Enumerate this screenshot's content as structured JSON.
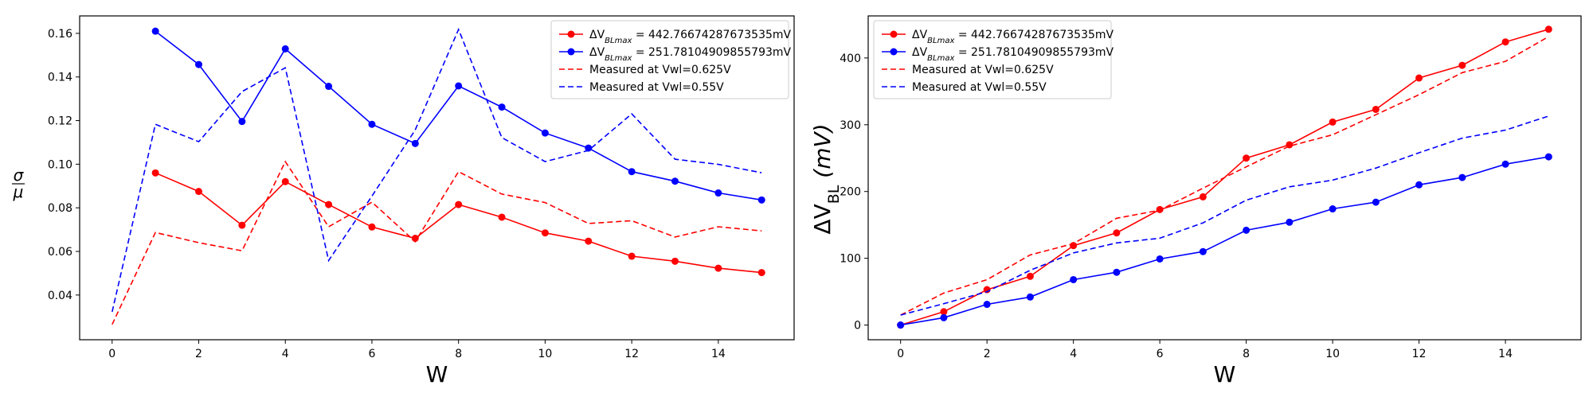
{
  "chart_data": [
    {
      "type": "line",
      "title": "",
      "xlabel": "W",
      "ylabel": "σ/μ",
      "ylabel_parts": {
        "numerator": "σ",
        "denominator": "μ"
      },
      "xlim": [
        -0.75,
        15.75
      ],
      "ylim": [
        0.0195,
        0.168
      ],
      "xticks": [
        0,
        2,
        4,
        6,
        8,
        10,
        12,
        14
      ],
      "xtick_labels": [
        "0",
        "2",
        "4",
        "6",
        "8",
        "10",
        "12",
        "14"
      ],
      "yticks": [
        0.04,
        0.06,
        0.08,
        0.1,
        0.12,
        0.14,
        0.16
      ],
      "ytick_labels": [
        "0.04",
        "0.06",
        "0.08",
        "0.10",
        "0.12",
        "0.14",
        "0.16"
      ],
      "grid": false,
      "legend_position": "top-right",
      "series": [
        {
          "name": "ΔV_BLmax = 442.76674287673535mV",
          "legend_prefix": "ΔV",
          "legend_sub": "BLmax",
          "legend_value": " = 442.76674287673535mV",
          "color": "#ff0000",
          "style": "solid",
          "marker": "circle",
          "x": [
            1,
            2,
            3,
            4,
            5,
            6,
            7,
            8,
            9,
            10,
            11,
            12,
            13,
            14,
            15
          ],
          "y": [
            0.096,
            0.0875,
            0.072,
            0.092,
            0.0815,
            0.0712,
            0.066,
            0.0815,
            0.0757,
            0.0685,
            0.0647,
            0.0578,
            0.0555,
            0.0523,
            0.0503
          ]
        },
        {
          "name": "ΔV_BLmax = 251.78104909855793mV",
          "legend_prefix": "ΔV",
          "legend_sub": "BLmax",
          "legend_value": " = 251.78104909855793mV",
          "color": "#0000ff",
          "style": "solid",
          "marker": "circle",
          "x": [
            1,
            2,
            3,
            4,
            5,
            6,
            7,
            8,
            9,
            10,
            11,
            12,
            13,
            14,
            15
          ],
          "y": [
            0.161,
            0.1457,
            0.1196,
            0.1529,
            0.1357,
            0.1183,
            0.1095,
            0.1359,
            0.1262,
            0.1143,
            0.1074,
            0.0966,
            0.0922,
            0.0868,
            0.0836
          ]
        },
        {
          "name": "Measured at Vwl=0.625V",
          "color": "#ff0000",
          "style": "dashed",
          "marker": "none",
          "x": [
            0,
            1,
            2,
            3,
            4,
            5,
            6,
            7,
            8,
            9,
            10,
            11,
            12,
            13,
            14,
            15
          ],
          "y": [
            0.0265,
            0.0687,
            0.064,
            0.0603,
            0.1012,
            0.0713,
            0.0826,
            0.0645,
            0.0966,
            0.0863,
            0.0824,
            0.0728,
            0.0741,
            0.0666,
            0.0713,
            0.0694
          ]
        },
        {
          "name": "Measured at Vwl=0.55V",
          "color": "#0000ff",
          "style": "dashed",
          "marker": "none",
          "x": [
            0,
            1,
            2,
            3,
            4,
            5,
            6,
            7,
            8,
            9,
            10,
            11,
            12,
            13,
            14,
            15
          ],
          "y": [
            0.0323,
            0.1183,
            0.1103,
            0.1333,
            0.1442,
            0.0558,
            0.0854,
            0.1157,
            0.1618,
            0.1122,
            0.1012,
            0.1063,
            0.1231,
            0.1023,
            0.0999,
            0.0961
          ]
        }
      ]
    },
    {
      "type": "line",
      "title": "",
      "xlabel": "W",
      "ylabel": "ΔV_BL (mV)",
      "ylabel_parts": {
        "prefix": "ΔV",
        "sub": "BL",
        "suffix": " (mV)"
      },
      "xlim": [
        -0.75,
        15.75
      ],
      "ylim": [
        -22,
        463
      ],
      "xticks": [
        0,
        2,
        4,
        6,
        8,
        10,
        12,
        14
      ],
      "xtick_labels": [
        "0",
        "2",
        "4",
        "6",
        "8",
        "10",
        "12",
        "14"
      ],
      "yticks": [
        0,
        100,
        200,
        300,
        400
      ],
      "ytick_labels": [
        "0",
        "100",
        "200",
        "300",
        "400"
      ],
      "grid": false,
      "legend_position": "top-left",
      "series": [
        {
          "name": "ΔV_BLmax = 442.76674287673535mV",
          "legend_prefix": "ΔV",
          "legend_sub": "BLmax",
          "legend_value": " = 442.76674287673535mV",
          "color": "#ff0000",
          "style": "solid",
          "marker": "circle",
          "x": [
            0,
            1,
            2,
            3,
            4,
            5,
            6,
            7,
            8,
            9,
            10,
            11,
            12,
            13,
            14,
            15
          ],
          "y": [
            0,
            20,
            53,
            73,
            119,
            138,
            173,
            192,
            250,
            270,
            304,
            323,
            370,
            389,
            424,
            443
          ]
        },
        {
          "name": "ΔV_BLmax = 251.78104909855793mV",
          "legend_prefix": "ΔV",
          "legend_sub": "BLmax",
          "legend_value": " = 251.78104909855793mV",
          "color": "#0000ff",
          "style": "solid",
          "marker": "circle",
          "x": [
            0,
            1,
            2,
            3,
            4,
            5,
            6,
            7,
            8,
            9,
            10,
            11,
            12,
            13,
            14,
            15
          ],
          "y": [
            0,
            11,
            31,
            42,
            68,
            79,
            99,
            110,
            142,
            154,
            174,
            184,
            210,
            221,
            241,
            252
          ]
        },
        {
          "name": "Measured at Vwl=0.625V",
          "color": "#ff0000",
          "style": "dashed",
          "marker": "none",
          "x": [
            0,
            1,
            2,
            3,
            4,
            5,
            6,
            7,
            8,
            9,
            10,
            11,
            12,
            13,
            14,
            15
          ],
          "y": [
            15,
            48,
            68,
            105,
            122,
            160,
            172,
            205,
            237,
            268,
            285,
            315,
            345,
            378,
            395,
            432
          ]
        },
        {
          "name": "Measured at Vwl=0.55V",
          "color": "#0000ff",
          "style": "dashed",
          "marker": "none",
          "x": [
            0,
            1,
            2,
            3,
            4,
            5,
            6,
            7,
            8,
            9,
            10,
            11,
            12,
            13,
            14,
            15
          ],
          "y": [
            15,
            32,
            50,
            82,
            108,
            123,
            130,
            153,
            187,
            207,
            217,
            235,
            258,
            280,
            292,
            313
          ]
        }
      ]
    }
  ]
}
